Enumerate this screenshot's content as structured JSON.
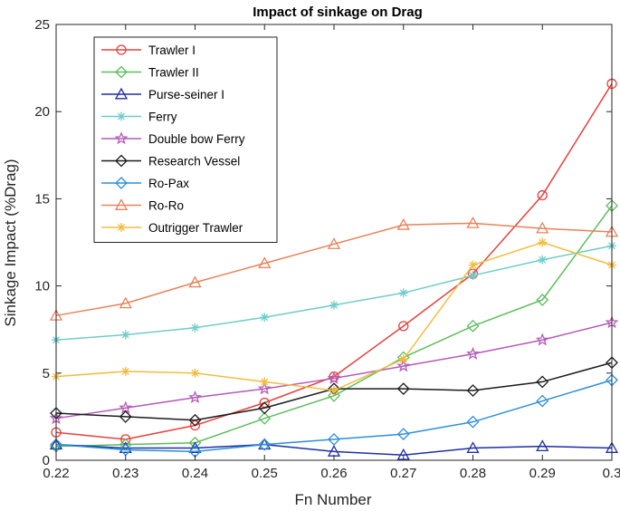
{
  "chart_data": {
    "type": "line",
    "title": "Impact of sinkage on Drag",
    "xlabel": "Fn Number",
    "ylabel": "Sinkage Impact (%Drag)",
    "x": [
      0.22,
      0.23,
      0.24,
      0.25,
      0.26,
      0.27,
      0.28,
      0.29,
      0.3
    ],
    "xlim": [
      0.22,
      0.3
    ],
    "ylim": [
      0,
      25
    ],
    "xticks": [
      "0.22",
      "0.23",
      "0.24",
      "0.25",
      "0.26",
      "0.27",
      "0.28",
      "0.29",
      "0.3"
    ],
    "yticks": [
      "0",
      "5",
      "10",
      "15",
      "20",
      "25"
    ],
    "grid": false,
    "legend_position": "top-left",
    "series": [
      {
        "name": "Trawler I",
        "color": "#e8413c",
        "marker": "circle",
        "values": [
          1.6,
          1.2,
          2.0,
          3.3,
          4.8,
          7.7,
          10.7,
          15.2,
          21.6
        ]
      },
      {
        "name": "Trawler II",
        "color": "#5cbd5c",
        "marker": "diamond",
        "values": [
          0.8,
          0.9,
          1.0,
          2.4,
          3.7,
          5.9,
          7.7,
          9.2,
          14.6
        ]
      },
      {
        "name": "Purse-seiner I",
        "color": "#1f2fa6",
        "marker": "triangle",
        "values": [
          0.9,
          0.7,
          0.7,
          0.9,
          0.5,
          0.3,
          0.7,
          0.8,
          0.7
        ]
      },
      {
        "name": "Ferry",
        "color": "#6fcdc8",
        "marker": "asterisk",
        "values": [
          6.9,
          7.2,
          7.6,
          8.2,
          8.9,
          9.6,
          10.6,
          11.5,
          12.3
        ]
      },
      {
        "name": "Double bow Ferry",
        "color": "#b35ab8",
        "marker": "star",
        "values": [
          2.4,
          3.0,
          3.6,
          4.1,
          4.7,
          5.4,
          6.1,
          6.9,
          7.9
        ]
      },
      {
        "name": "Research Vessel",
        "color": "#1c1c1c",
        "marker": "diamond",
        "values": [
          2.7,
          2.5,
          2.3,
          3.0,
          4.1,
          4.1,
          4.0,
          4.5,
          5.6
        ]
      },
      {
        "name": "Ro-Pax",
        "color": "#2d8fd9",
        "marker": "diamond",
        "values": [
          0.9,
          0.6,
          0.5,
          0.9,
          1.2,
          1.5,
          2.2,
          3.4,
          4.6
        ]
      },
      {
        "name": "Ro-Ro",
        "color": "#e9825a",
        "marker": "triangle",
        "values": [
          8.3,
          9.0,
          10.2,
          11.3,
          12.4,
          13.5,
          13.6,
          13.3,
          13.1
        ]
      },
      {
        "name": "Outrigger Trawler",
        "color": "#f2bd40",
        "marker": "asterisk",
        "values": [
          4.8,
          5.1,
          5.0,
          4.5,
          4.0,
          5.8,
          11.2,
          12.5,
          11.2
        ]
      }
    ]
  }
}
